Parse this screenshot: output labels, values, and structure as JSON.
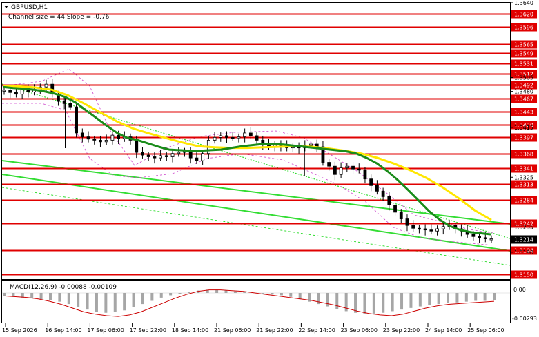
{
  "header": {
    "symbol_timeframe": "GBPUSD,H1",
    "channel_info": "Channel size = 44 Slope = -0.76",
    "triangle_icon": "dropdown-triangle-icon"
  },
  "macd": {
    "label": "MACD(12,26,9) -0.00088 -0.00109",
    "ylabels": [
      "0.00",
      "-0.00293"
    ]
  },
  "chart_data": {
    "type": "candlestick",
    "symbol": "GBPUSD",
    "timeframe": "H1",
    "ylim": [
      1.314,
      1.364
    ],
    "y_ticks": [
      "1.3640",
      "1.3620",
      "1.3596",
      "1.3565",
      "1.3549",
      "1.3531",
      "1.3512",
      "1.3505",
      "1.3492",
      "1.3480",
      "1.3467",
      "1.3443",
      "1.3420",
      "1.3415",
      "1.3397",
      "1.3368",
      "1.3341",
      "1.3325",
      "1.3313",
      "1.3284",
      "1.3242",
      "1.3235",
      "1.3214",
      "1.3194",
      "1.3190",
      "1.3150"
    ],
    "x_ticks": [
      "15 Sep 2026",
      "16 Sep 14:00",
      "17 Sep 06:00",
      "17 Sep 22:00",
      "18 Sep 14:00",
      "21 Sep 06:00",
      "21 Sep 22:00",
      "22 Sep 14:00",
      "23 Sep 06:00",
      "23 Sep 22:00",
      "24 Sep 14:00",
      "25 Sep 06:00"
    ],
    "levels": [
      "1.3620",
      "1.3596",
      "1.3565",
      "1.3549",
      "1.3531",
      "1.3512",
      "1.3492",
      "1.3467",
      "1.3443",
      "1.3420",
      "1.3397",
      "1.3368",
      "1.3341",
      "1.3313",
      "1.3284",
      "1.3242",
      "1.3194",
      "1.3150"
    ],
    "current_price": "1.3214",
    "level_color": "#e00000",
    "candle_color": "#000000",
    "fast_ma_color": "#1a8c1a",
    "slow_ma_color": "#ffe600",
    "channel_color": "#33dd33",
    "envelope_color": "#cc44cc",
    "macd_hist_color": "#a6a6a6",
    "macd_signal_color": "#cc0000",
    "close_series": [
      1.3482,
      1.3478,
      1.3475,
      1.3485,
      1.3479,
      1.3483,
      1.3488,
      1.3493,
      1.3475,
      1.3462,
      1.3458,
      1.3452,
      1.3405,
      1.3398,
      1.3394,
      1.3392,
      1.3389,
      1.3392,
      1.3401,
      1.3395,
      1.3398,
      1.3392,
      1.337,
      1.3365,
      1.3362,
      1.336,
      1.3364,
      1.3362,
      1.3368,
      1.337,
      1.3372,
      1.336,
      1.3355,
      1.3368,
      1.3392,
      1.3397,
      1.34,
      1.3397,
      1.3396,
      1.3398,
      1.3405,
      1.34,
      1.3392,
      1.3385,
      1.338,
      1.3384,
      1.3382,
      1.3378,
      1.338,
      1.3378,
      1.3382,
      1.3385,
      1.338,
      1.3352,
      1.3345,
      1.333,
      1.3342,
      1.3345,
      1.334,
      1.3338,
      1.3322,
      1.331,
      1.33,
      1.329,
      1.3275,
      1.3262,
      1.325,
      1.3238,
      1.3233,
      1.3232,
      1.323,
      1.3228,
      1.3232,
      1.3236,
      1.3238,
      1.3232,
      1.3228,
      1.3222,
      1.3218,
      1.3216,
      1.3214,
      1.3214
    ],
    "fast_ma": [
      1.3488,
      1.3486,
      1.3485,
      1.3483,
      1.348,
      1.3476,
      1.347,
      1.346,
      1.3446,
      1.3432,
      1.3418,
      1.3405,
      1.3396,
      1.3392,
      1.3386,
      1.338,
      1.3375,
      1.3374,
      1.3373,
      1.3373,
      1.3374,
      1.3375,
      1.3378,
      1.3381,
      1.3383,
      1.3385,
      1.3385,
      1.3384,
      1.3382,
      1.338,
      1.3378,
      1.3376,
      1.3374,
      1.3372,
      1.3368,
      1.336,
      1.335,
      1.3336,
      1.332,
      1.3302,
      1.3283,
      1.3264,
      1.3249,
      1.3237,
      1.323,
      1.3226,
      1.3224,
      1.3222
    ],
    "slow_ma": [
      1.349,
      1.3489,
      1.3487,
      1.3483,
      1.3473,
      1.3458,
      1.3442,
      1.3426,
      1.3413,
      1.3404,
      1.3396,
      1.3388,
      1.3381,
      1.3379,
      1.3378,
      1.3378,
      1.3379,
      1.338,
      1.3381,
      1.338,
      1.3377,
      1.3373,
      1.3368,
      1.336,
      1.335,
      1.3338,
      1.3324,
      1.3307,
      1.3287,
      1.3265,
      1.3248
    ],
    "macd_hist": [
      -0.0004,
      -0.0005,
      -0.0006,
      -0.0007,
      -0.0008,
      -0.0009,
      -0.0011,
      -0.0014,
      -0.0018,
      -0.0021,
      -0.0024,
      -0.0025,
      -0.0024,
      -0.0022,
      -0.0018,
      -0.0014,
      -0.001,
      -0.0006,
      -0.0003,
      -0.0001,
      0.0001,
      0.0003,
      0.0004,
      0.0004,
      0.0003,
      0.0002,
      0.0001,
      0.0,
      -0.0001,
      -0.0002,
      -0.0003,
      -0.0005,
      -0.0008,
      -0.0011,
      -0.0014,
      -0.0017,
      -0.002,
      -0.0023,
      -0.0025,
      -0.0026,
      -0.0026,
      -0.0025,
      -0.0023,
      -0.0021,
      -0.0019,
      -0.0017,
      -0.0015,
      -0.0014,
      -0.0013,
      -0.0012,
      -0.0011,
      -0.001,
      -0.001,
      -0.0009
    ],
    "macd_signal": [
      -0.0004,
      -0.0005,
      -0.0006,
      -0.0008,
      -0.0011,
      -0.0015,
      -0.002,
      -0.0025,
      -0.0028,
      -0.003,
      -0.0031,
      -0.0029,
      -0.0025,
      -0.0019,
      -0.0013,
      -0.0007,
      -0.0002,
      0.0002,
      0.0004,
      0.0004,
      0.0003,
      0.0002,
      0.0,
      -0.0002,
      -0.0004,
      -0.0006,
      -0.0008,
      -0.001,
      -0.0013,
      -0.0016,
      -0.002,
      -0.0024,
      -0.0027,
      -0.0029,
      -0.003,
      -0.0028,
      -0.0024,
      -0.002,
      -0.0017,
      -0.0015,
      -0.0014,
      -0.0013,
      -0.0012,
      -0.0011
    ]
  }
}
